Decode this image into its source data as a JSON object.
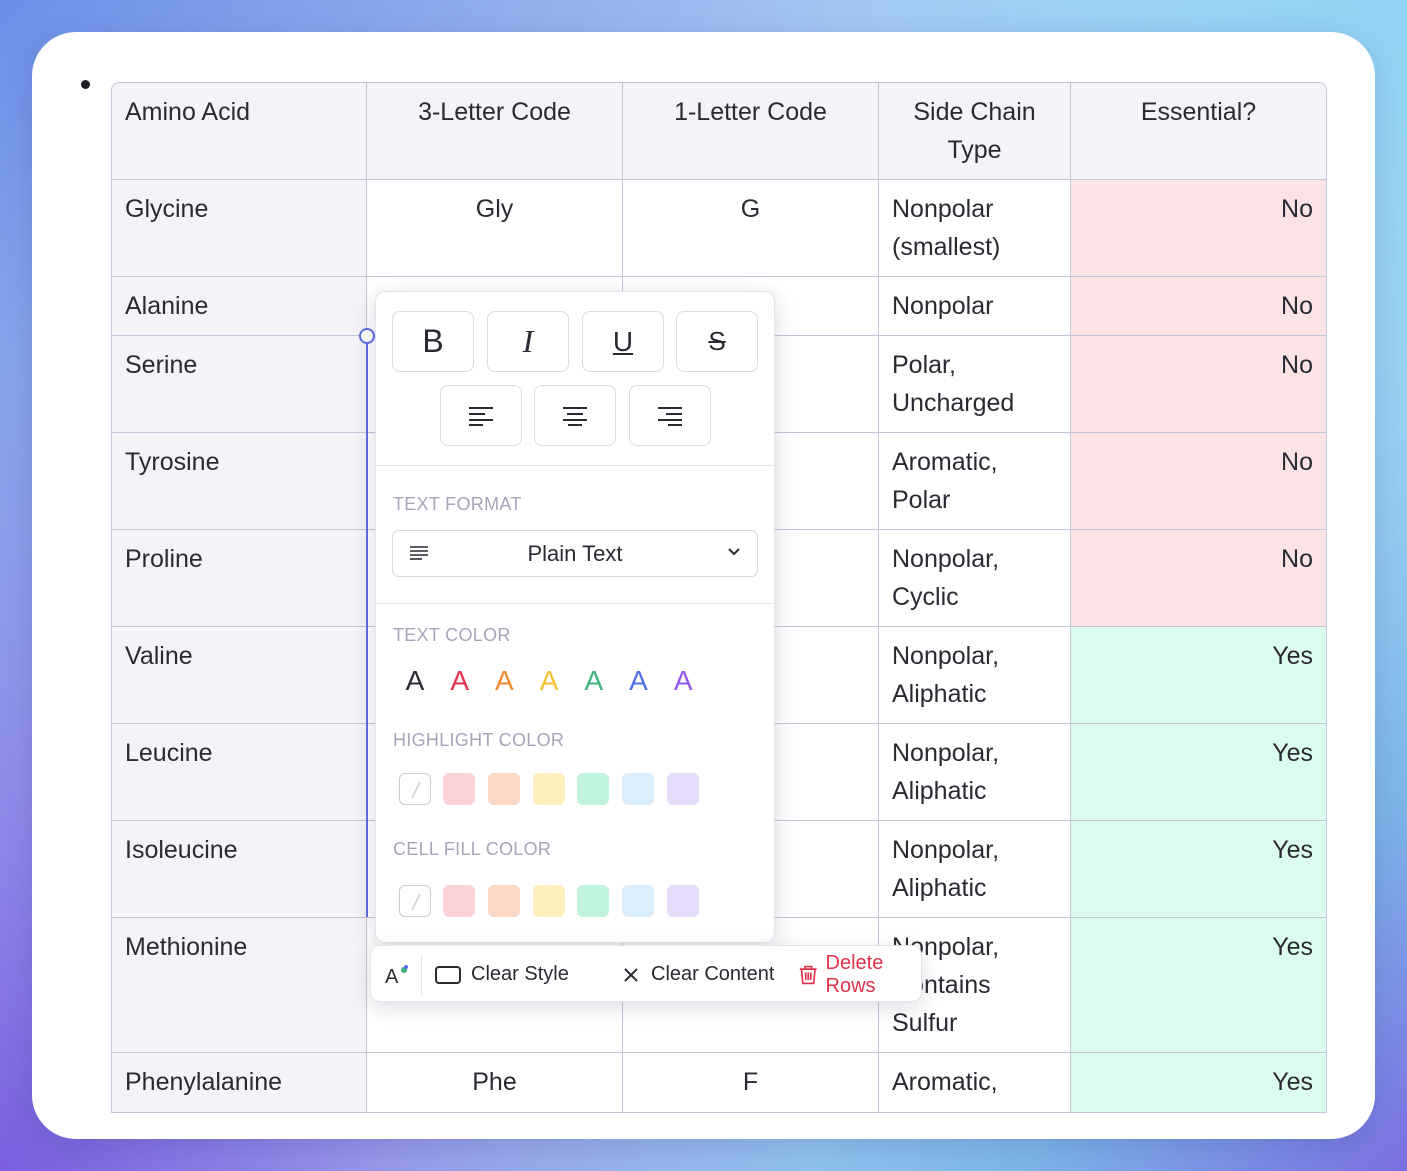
{
  "table": {
    "headers": [
      "Amino Acid",
      "3-Letter Code",
      "1-Letter Code",
      "Side Chain Type",
      "Essential?"
    ],
    "rows": [
      {
        "name": "Glycine",
        "code3": "Gly",
        "code1": "G",
        "side": "Nonpolar (smallest)",
        "essential": "No"
      },
      {
        "name": "Alanine",
        "code3": "",
        "code1": "",
        "side": "Nonpolar",
        "essential": "No"
      },
      {
        "name": "Serine",
        "code3": "",
        "code1": "",
        "side": "Polar, Uncharged",
        "essential": "No"
      },
      {
        "name": "Tyrosine",
        "code3": "",
        "code1": "",
        "side": "Aromatic, Polar",
        "essential": "No"
      },
      {
        "name": "Proline",
        "code3": "",
        "code1": "",
        "side": "Nonpolar, Cyclic",
        "essential": "No"
      },
      {
        "name": "Valine",
        "code3": "",
        "code1": "",
        "side": "Nonpolar, Aliphatic",
        "essential": "Yes"
      },
      {
        "name": "Leucine",
        "code3": "",
        "code1": "",
        "side": "Nonpolar, Aliphatic",
        "essential": "Yes"
      },
      {
        "name": "Isoleucine",
        "code3": "",
        "code1": "",
        "side": "Nonpolar, Aliphatic",
        "essential": "Yes"
      },
      {
        "name": "Methionine",
        "code3": "",
        "code1": "",
        "side": "Nonpolar, Contains Sulfur",
        "essential": "Yes"
      },
      {
        "name": "Phenylalanine",
        "code3": "Phe",
        "code1": "F",
        "side": "Aromatic,",
        "essential": "Yes"
      }
    ]
  },
  "popover": {
    "format_buttons": [
      {
        "icon": "bold-icon",
        "glyph": "B"
      },
      {
        "icon": "italic-icon",
        "glyph": "I"
      },
      {
        "icon": "underline-icon",
        "glyph": "U"
      },
      {
        "icon": "strikethrough-icon",
        "glyph": "S"
      }
    ],
    "align_buttons": [
      "align-left-icon",
      "align-center-icon",
      "align-right-icon"
    ],
    "text_format_label": "TEXT FORMAT",
    "text_format_value": "Plain Text",
    "text_color_label": "TEXT COLOR",
    "text_color_glyph": "A",
    "text_colors": [
      "#2a2a33",
      "#e0334b",
      "#f08a2c",
      "#f2c132",
      "#3fb37a",
      "#4f6ee8",
      "#9257e6"
    ],
    "highlight_label": "HIGHLIGHT COLOR",
    "cell_fill_label": "CELL FILL COLOR",
    "swatch_colors": [
      "#f9d3d8",
      "#fbd9c5",
      "#fdf0bd",
      "#bff3dc",
      "#dcedfb",
      "#e6dcfb"
    ]
  },
  "toolbar": {
    "style_icon": "text-style-icon",
    "clear_style": "Clear Style",
    "clear_content": "Clear Content",
    "delete_rows": "Delete Rows"
  }
}
